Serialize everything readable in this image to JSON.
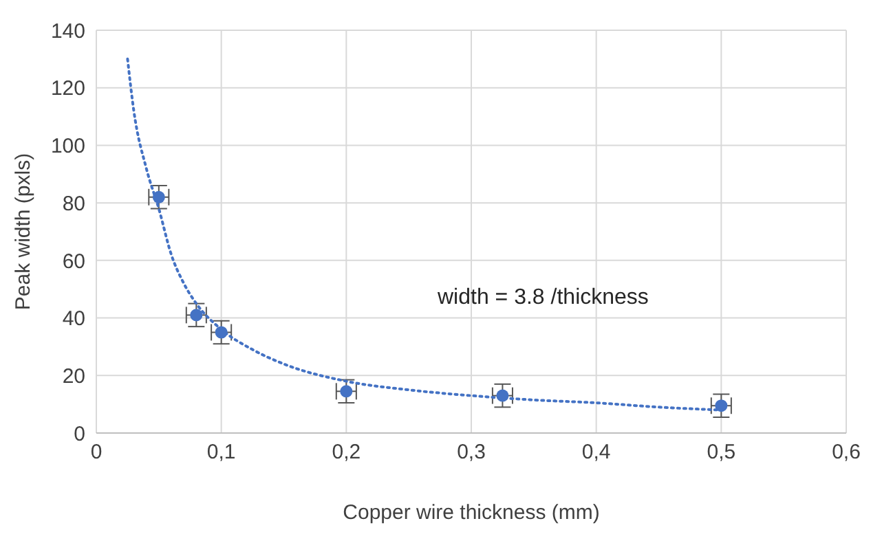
{
  "chart_data": {
    "type": "scatter",
    "xlabel": "Copper wire thickness (mm)",
    "ylabel": "Peak width (pxls)",
    "xlim": [
      0,
      0.6
    ],
    "xticks": [
      {
        "value": 0,
        "label": "0"
      },
      {
        "value": 0.1,
        "label": "0,1"
      },
      {
        "value": 0.2,
        "label": "0,2"
      },
      {
        "value": 0.3,
        "label": "0,3"
      },
      {
        "value": 0.4,
        "label": "0,4"
      },
      {
        "value": 0.5,
        "label": "0,5"
      },
      {
        "value": 0.6,
        "label": "0,6"
      }
    ],
    "ylim": [
      0,
      140
    ],
    "yticks": [
      0,
      20,
      40,
      60,
      80,
      100,
      120,
      140
    ],
    "grid": true,
    "annotations": [
      "width = 3.8 /thickness"
    ],
    "series": [
      {
        "type": "scatter",
        "color": "#4472c4",
        "marker": "circle",
        "x": [
          0.05,
          0.08,
          0.1,
          0.2,
          0.325,
          0.5
        ],
        "values": [
          82,
          41,
          35,
          14.5,
          13,
          9.5
        ],
        "errors": [
          4,
          4,
          4,
          4,
          4,
          4
        ],
        "xerrors": [
          0.008,
          0.008,
          0.008,
          0.008,
          0.008,
          0.008
        ]
      },
      {
        "type": "line",
        "color": "#4472c4",
        "marker": "none",
        "line_style": "dotted",
        "x": [
          0.025,
          0.03,
          0.04,
          0.05,
          0.06,
          0.07,
          0.08,
          0.1,
          0.125,
          0.15,
          0.2,
          0.25,
          0.3,
          0.35,
          0.4,
          0.45,
          0.5
        ],
        "values": [
          130,
          112,
          92,
          78,
          62,
          52,
          45,
          36,
          29,
          24,
          18,
          15,
          13,
          11.5,
          10.5,
          9,
          8
        ]
      }
    ]
  }
}
